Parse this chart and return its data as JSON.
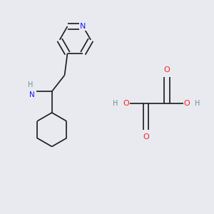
{
  "bg_color": "#e8eaf0",
  "bond_color": "#1a1a1a",
  "bond_width": 1.2,
  "atom_colors": {
    "N": "#1a1aff",
    "O": "#ff2020",
    "H": "#6a9090",
    "C": "#1a1a1a"
  },
  "font_size": 7.5
}
